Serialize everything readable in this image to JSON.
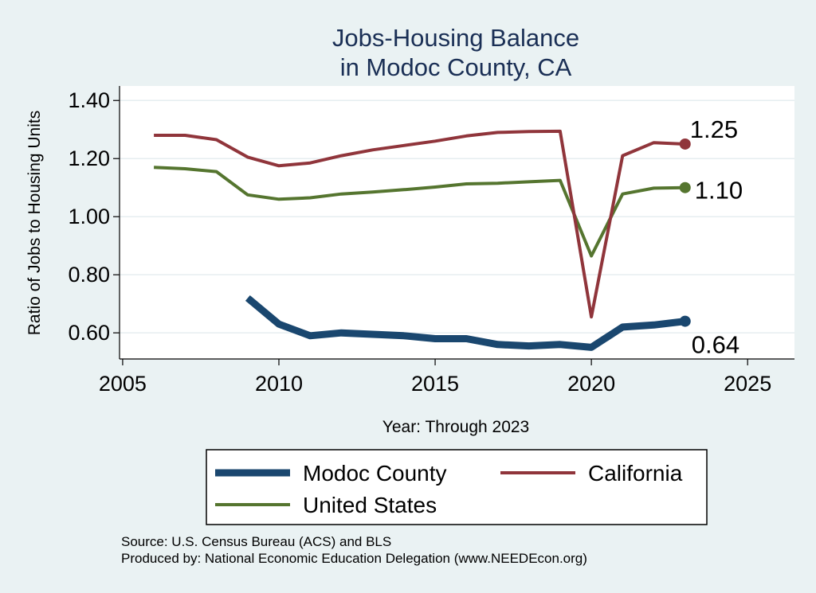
{
  "chart_data": {
    "type": "line",
    "title": [
      "Jobs-Housing Balance",
      "in Modoc County, CA"
    ],
    "xlabel": "Year: Through 2023",
    "ylabel": "Ratio of Jobs to Housing Units",
    "xlim": [
      2004.9,
      2026.5
    ],
    "ylim": [
      0.51,
      1.45
    ],
    "xticks": [
      2005,
      2010,
      2015,
      2020,
      2025
    ],
    "yticks": [
      0.6,
      0.8,
      1.0,
      1.2,
      1.4
    ],
    "ytick_labels": [
      "0.60",
      "0.80",
      "1.00",
      "1.20",
      "1.40"
    ],
    "grid": true,
    "legend_position": "bottom",
    "series": [
      {
        "name": "Modoc County",
        "color": "#1a476f",
        "line_width": "thick",
        "x": [
          2009,
          2010,
          2011,
          2012,
          2013,
          2014,
          2015,
          2016,
          2017,
          2018,
          2019,
          2020,
          2021,
          2022,
          2023
        ],
        "values": [
          0.72,
          0.63,
          0.59,
          0.6,
          0.595,
          0.59,
          0.58,
          0.58,
          0.56,
          0.555,
          0.56,
          0.55,
          0.62,
          0.627,
          0.64
        ],
        "end_label": "0.64"
      },
      {
        "name": "California",
        "color": "#90353b",
        "line_width": "medium",
        "x": [
          2006,
          2007,
          2008,
          2009,
          2010,
          2011,
          2012,
          2013,
          2014,
          2015,
          2016,
          2017,
          2018,
          2019,
          2020,
          2021,
          2022,
          2023
        ],
        "values": [
          1.28,
          1.28,
          1.265,
          1.205,
          1.175,
          1.185,
          1.21,
          1.23,
          1.245,
          1.26,
          1.278,
          1.29,
          1.293,
          1.294,
          0.655,
          1.21,
          1.255,
          1.25
        ],
        "end_label": "1.25"
      },
      {
        "name": "United States",
        "color": "#55752f",
        "line_width": "medium",
        "x": [
          2006,
          2007,
          2008,
          2009,
          2010,
          2011,
          2012,
          2013,
          2014,
          2015,
          2016,
          2017,
          2018,
          2019,
          2020,
          2021,
          2022,
          2023
        ],
        "values": [
          1.17,
          1.165,
          1.155,
          1.075,
          1.06,
          1.065,
          1.078,
          1.085,
          1.093,
          1.102,
          1.113,
          1.115,
          1.12,
          1.125,
          0.865,
          1.078,
          1.098,
          1.1
        ],
        "end_label": "1.10"
      }
    ],
    "legend_layout": [
      [
        "Modoc County",
        "California"
      ],
      [
        "United States"
      ]
    ],
    "notes": [
      "Source: U.S. Census Bureau (ACS) and BLS",
      "Produced by: National Economic Education Delegation (www.NEEDEcon.org)"
    ]
  }
}
